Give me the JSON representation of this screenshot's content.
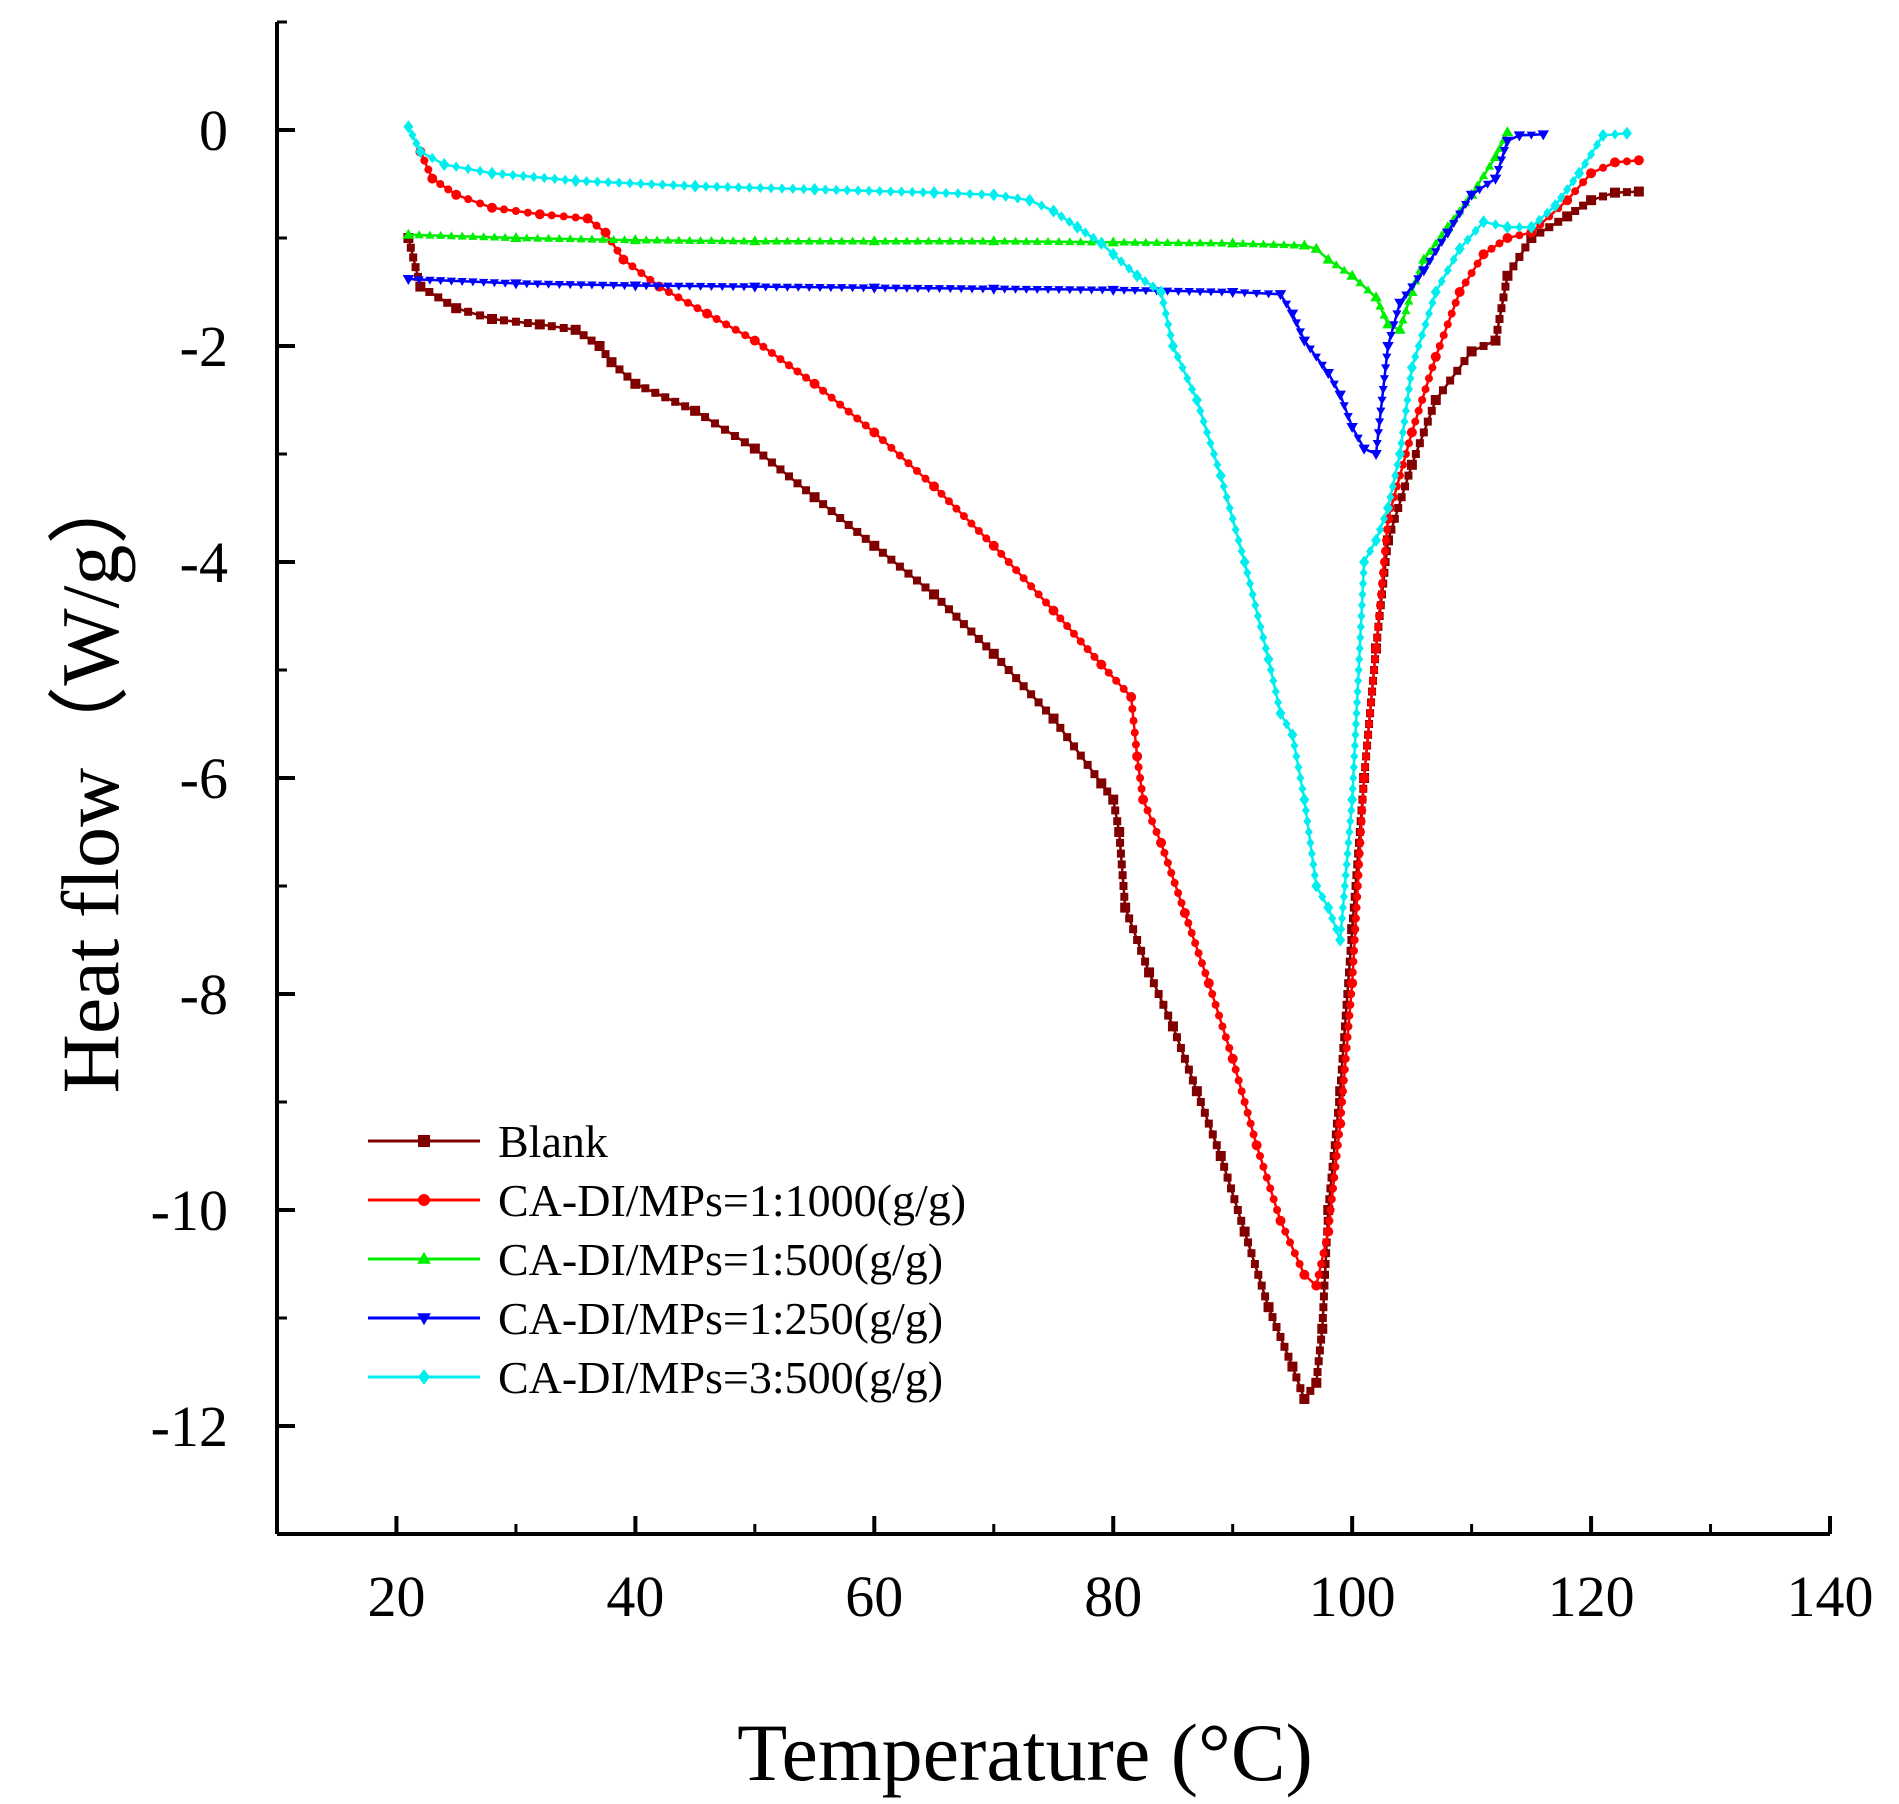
{
  "chart_data": {
    "type": "line",
    "title": "",
    "xlabel": "Temperature (°C)",
    "ylabel": "Heat flow（W/g）",
    "xlim": [
      10,
      140
    ],
    "ylim": [
      -13,
      1
    ],
    "xticks": [
      20,
      40,
      60,
      80,
      100,
      120,
      140
    ],
    "xtick_labels": [
      "20",
      "40",
      "60",
      "80",
      "100",
      "120",
      "140"
    ],
    "yticks": [
      0,
      -2,
      -4,
      -6,
      -8,
      -10,
      -12
    ],
    "ytick_labels": [
      "0",
      "-2",
      "-4",
      "-6",
      "-8",
      "-10",
      "-12"
    ],
    "grid": false,
    "legend_position": "bottom-left",
    "series": [
      {
        "name": "Blank",
        "color": "#800000",
        "marker": "square",
        "points": [
          [
            21,
            -1.0
          ],
          [
            22,
            -1.45
          ],
          [
            25,
            -1.65
          ],
          [
            28,
            -1.75
          ],
          [
            32,
            -1.8
          ],
          [
            35,
            -1.85
          ],
          [
            37,
            -2.0
          ],
          [
            38,
            -2.15
          ],
          [
            40,
            -2.35
          ],
          [
            45,
            -2.6
          ],
          [
            50,
            -2.95
          ],
          [
            55,
            -3.4
          ],
          [
            60,
            -3.85
          ],
          [
            65,
            -4.3
          ],
          [
            70,
            -4.85
          ],
          [
            75,
            -5.45
          ],
          [
            79,
            -6.05
          ],
          [
            80,
            -6.2
          ],
          [
            80.5,
            -6.5
          ],
          [
            81,
            -7.2
          ],
          [
            83,
            -7.8
          ],
          [
            85,
            -8.3
          ],
          [
            87,
            -8.9
          ],
          [
            89,
            -9.5
          ],
          [
            91,
            -10.2
          ],
          [
            93,
            -10.9
          ],
          [
            95,
            -11.45
          ],
          [
            96,
            -11.75
          ],
          [
            97,
            -11.6
          ],
          [
            97.5,
            -11.1
          ],
          [
            98,
            -10.0
          ],
          [
            99,
            -8.9
          ],
          [
            100,
            -7.4
          ],
          [
            101,
            -6.0
          ],
          [
            102,
            -4.8
          ],
          [
            103,
            -3.8
          ],
          [
            105,
            -3.1
          ],
          [
            107,
            -2.5
          ],
          [
            110,
            -2.05
          ],
          [
            112,
            -1.95
          ],
          [
            113,
            -1.35
          ],
          [
            115,
            -1.0
          ],
          [
            118,
            -0.8
          ],
          [
            120,
            -0.65
          ],
          [
            122,
            -0.58
          ],
          [
            124,
            -0.57
          ]
        ]
      },
      {
        "name": "CA-DI/MPs=1:1000(g/g)",
        "color": "#ff0000",
        "marker": "circle",
        "points": [
          [
            22,
            -0.2
          ],
          [
            23,
            -0.45
          ],
          [
            25,
            -0.6
          ],
          [
            28,
            -0.72
          ],
          [
            32,
            -0.78
          ],
          [
            36,
            -0.82
          ],
          [
            37.5,
            -0.95
          ],
          [
            39,
            -1.2
          ],
          [
            42,
            -1.45
          ],
          [
            46,
            -1.7
          ],
          [
            50,
            -1.95
          ],
          [
            55,
            -2.35
          ],
          [
            60,
            -2.8
          ],
          [
            65,
            -3.3
          ],
          [
            70,
            -3.85
          ],
          [
            75,
            -4.45
          ],
          [
            79,
            -4.95
          ],
          [
            81.5,
            -5.25
          ],
          [
            82,
            -5.8
          ],
          [
            82.5,
            -6.2
          ],
          [
            84,
            -6.6
          ],
          [
            86,
            -7.25
          ],
          [
            88,
            -7.9
          ],
          [
            90,
            -8.6
          ],
          [
            92,
            -9.4
          ],
          [
            94,
            -10.1
          ],
          [
            96,
            -10.6
          ],
          [
            97,
            -10.7
          ],
          [
            98,
            -10.2
          ],
          [
            99,
            -9.2
          ],
          [
            100,
            -7.9
          ],
          [
            101,
            -6.0
          ],
          [
            102,
            -4.8
          ],
          [
            103,
            -3.6
          ],
          [
            105,
            -2.8
          ],
          [
            107,
            -2.1
          ],
          [
            109,
            -1.5
          ],
          [
            111,
            -1.15
          ],
          [
            113,
            -1.0
          ],
          [
            115,
            -0.95
          ],
          [
            118,
            -0.65
          ],
          [
            120,
            -0.4
          ],
          [
            122,
            -0.3
          ],
          [
            124,
            -0.28
          ]
        ]
      },
      {
        "name": "CA-DI/MPs=1:500(g/g)",
        "color": "#00ee00",
        "marker": "triangle-up",
        "points": [
          [
            21,
            -0.97
          ],
          [
            30,
            -1.0
          ],
          [
            40,
            -1.02
          ],
          [
            50,
            -1.03
          ],
          [
            60,
            -1.03
          ],
          [
            70,
            -1.03
          ],
          [
            80,
            -1.04
          ],
          [
            90,
            -1.05
          ],
          [
            96,
            -1.07
          ],
          [
            97,
            -1.1
          ],
          [
            98,
            -1.2
          ],
          [
            100,
            -1.35
          ],
          [
            102,
            -1.55
          ],
          [
            103,
            -1.8
          ],
          [
            104,
            -1.85
          ],
          [
            105,
            -1.5
          ],
          [
            106,
            -1.2
          ],
          [
            108,
            -0.9
          ],
          [
            110,
            -0.6
          ],
          [
            112,
            -0.25
          ],
          [
            113,
            -0.02
          ]
        ]
      },
      {
        "name": "CA-DI/MPs=1:250(g/g)",
        "color": "#0000ff",
        "marker": "triangle-down",
        "points": [
          [
            21,
            -1.38
          ],
          [
            30,
            -1.42
          ],
          [
            40,
            -1.44
          ],
          [
            50,
            -1.45
          ],
          [
            60,
            -1.46
          ],
          [
            70,
            -1.47
          ],
          [
            80,
            -1.48
          ],
          [
            90,
            -1.5
          ],
          [
            94,
            -1.52
          ],
          [
            95,
            -1.7
          ],
          [
            96,
            -1.95
          ],
          [
            98,
            -2.25
          ],
          [
            99,
            -2.45
          ],
          [
            100,
            -2.75
          ],
          [
            101,
            -2.95
          ],
          [
            102,
            -3.0
          ],
          [
            103,
            -2.0
          ],
          [
            104,
            -1.6
          ],
          [
            106,
            -1.3
          ],
          [
            108,
            -0.95
          ],
          [
            110,
            -0.6
          ],
          [
            112,
            -0.45
          ],
          [
            113,
            -0.1
          ],
          [
            114,
            -0.05
          ],
          [
            116,
            -0.04
          ]
        ]
      },
      {
        "name": "CA-DI/MPs=3:500(g/g)",
        "color": "#00eeee",
        "marker": "diamond",
        "points": [
          [
            21,
            0.03
          ],
          [
            22,
            -0.2
          ],
          [
            24,
            -0.32
          ],
          [
            28,
            -0.4
          ],
          [
            35,
            -0.47
          ],
          [
            45,
            -0.52
          ],
          [
            55,
            -0.55
          ],
          [
            65,
            -0.58
          ],
          [
            70,
            -0.6
          ],
          [
            73,
            -0.65
          ],
          [
            75,
            -0.75
          ],
          [
            77,
            -0.9
          ],
          [
            79,
            -1.05
          ],
          [
            80,
            -1.15
          ],
          [
            82,
            -1.35
          ],
          [
            84,
            -1.5
          ],
          [
            85,
            -2.0
          ],
          [
            87,
            -2.5
          ],
          [
            89,
            -3.2
          ],
          [
            91,
            -4.0
          ],
          [
            93,
            -4.9
          ],
          [
            94,
            -5.4
          ],
          [
            95,
            -5.6
          ],
          [
            96,
            -6.2
          ],
          [
            97,
            -7.0
          ],
          [
            98,
            -7.2
          ],
          [
            99,
            -7.5
          ],
          [
            100,
            -6.2
          ],
          [
            101,
            -4.0
          ],
          [
            102,
            -3.8
          ],
          [
            103,
            -3.5
          ],
          [
            104,
            -3.0
          ],
          [
            105,
            -2.2
          ],
          [
            107,
            -1.5
          ],
          [
            109,
            -1.1
          ],
          [
            111,
            -0.85
          ],
          [
            113,
            -0.9
          ],
          [
            115,
            -0.9
          ],
          [
            117,
            -0.7
          ],
          [
            119,
            -0.4
          ],
          [
            121,
            -0.05
          ],
          [
            123,
            -0.03
          ]
        ]
      }
    ]
  }
}
